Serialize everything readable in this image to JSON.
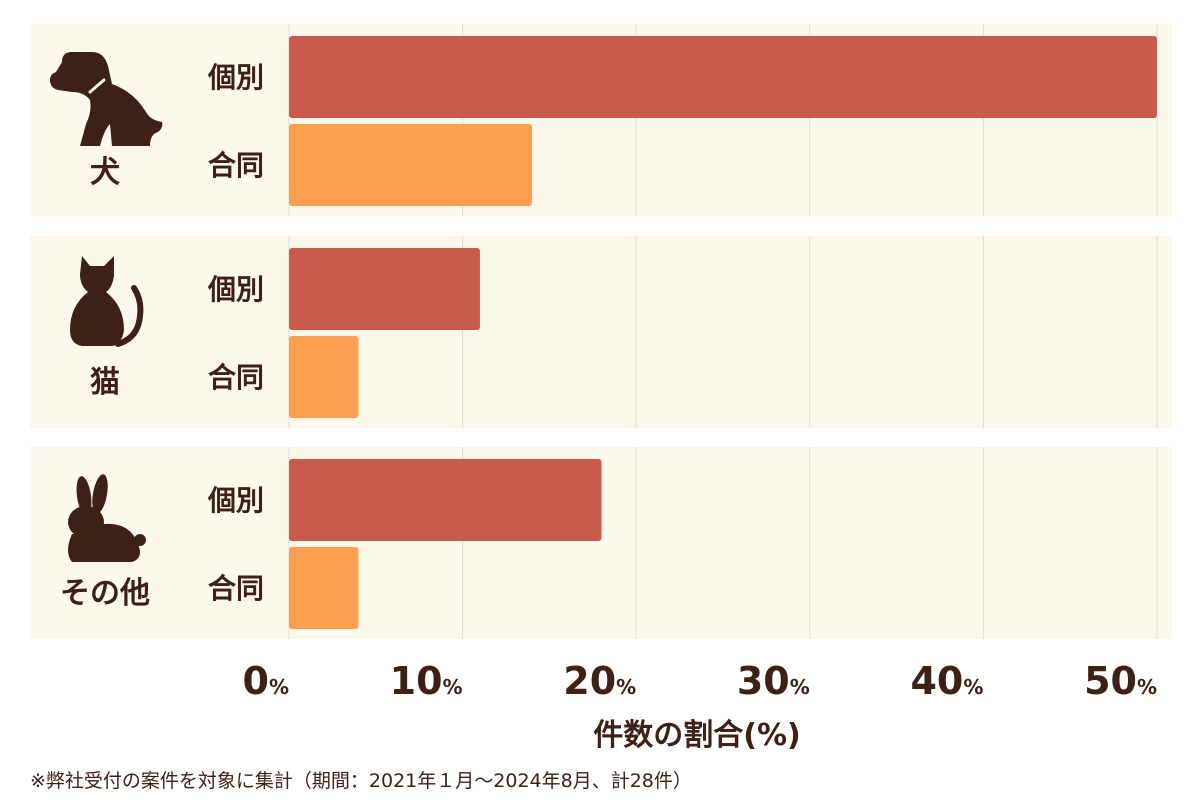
{
  "chart_data": {
    "type": "bar",
    "orientation": "horizontal",
    "groups": [
      {
        "label": "犬",
        "icon": "dog-icon"
      },
      {
        "label": "猫",
        "icon": "cat-icon"
      },
      {
        "label": "その他",
        "icon": "rabbit-icon"
      }
    ],
    "series": [
      {
        "name": "個別",
        "color": "#c65b4e",
        "values": [
          50,
          11,
          18
        ]
      },
      {
        "name": "合同",
        "color": "#fc9e50",
        "values": [
          14,
          4,
          4
        ]
      }
    ],
    "xlim": [
      0,
      50
    ],
    "x_ticks": [
      {
        "value": 0,
        "num": "0",
        "unit": "%"
      },
      {
        "value": 10,
        "num": "10",
        "unit": "%"
      },
      {
        "value": 20,
        "num": "20",
        "unit": "%"
      },
      {
        "value": 30,
        "num": "30",
        "unit": "%"
      },
      {
        "value": 40,
        "num": "40",
        "unit": "%"
      },
      {
        "value": 50,
        "num": "50",
        "unit": "%"
      }
    ],
    "xlabel": "件数の割合(%)",
    "ylabel": "",
    "title": "",
    "grid": true,
    "legend": "none",
    "colors": {
      "panel": "#fdf8ec",
      "grid": "#e4ddd0",
      "text": "#3d2116"
    }
  },
  "footnote": "※弊社受付の案件を対象に集計（期間：2021年１月～2024年8月、計28件）"
}
